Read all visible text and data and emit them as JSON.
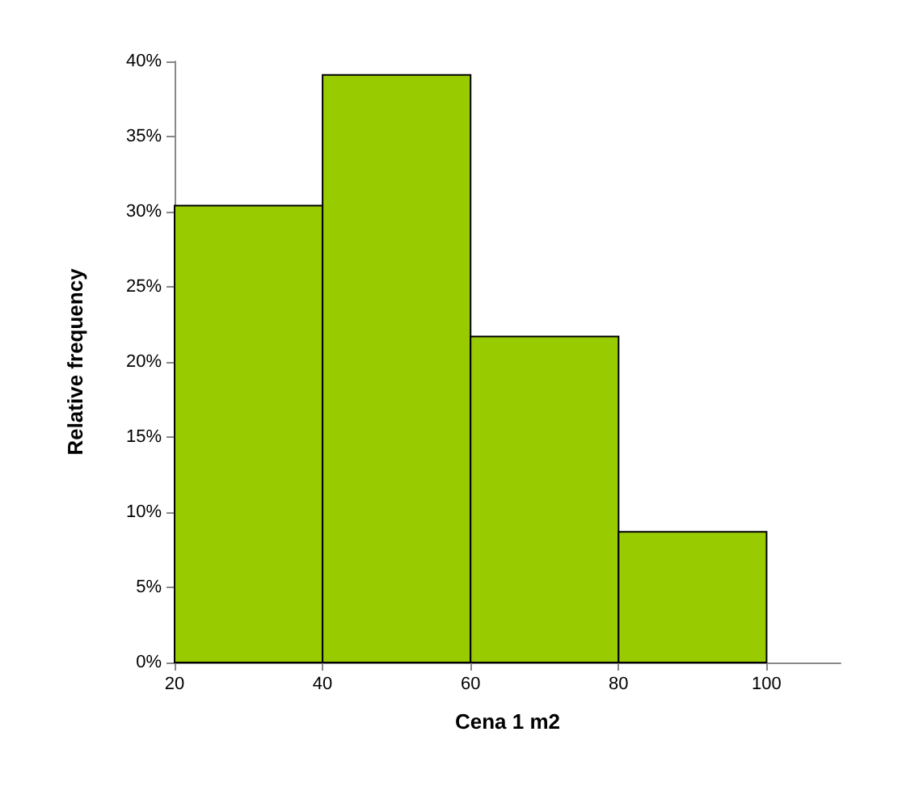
{
  "chart_data": {
    "type": "histogram",
    "xlabel": "Cena 1 m2",
    "ylabel": "Relative frequency",
    "bins": [
      20,
      40,
      60,
      80,
      100
    ],
    "values": [
      30.4,
      39.1,
      21.7,
      8.7
    ],
    "color": "#99cc00",
    "xlim": [
      20,
      110
    ],
    "xticks": [
      20,
      40,
      60,
      80,
      100
    ],
    "ylim": [
      0,
      40
    ],
    "yticks": [
      {
        "value": 0,
        "label": "0%"
      },
      {
        "value": 5,
        "label": "5%"
      },
      {
        "value": 10,
        "label": "10%"
      },
      {
        "value": 15,
        "label": "15%"
      },
      {
        "value": 20,
        "label": "20%"
      },
      {
        "value": 25,
        "label": "25%"
      },
      {
        "value": 30,
        "label": "30%"
      },
      {
        "value": 35,
        "label": "35%"
      },
      {
        "value": 40,
        "label": "40%"
      }
    ],
    "grid": false
  }
}
